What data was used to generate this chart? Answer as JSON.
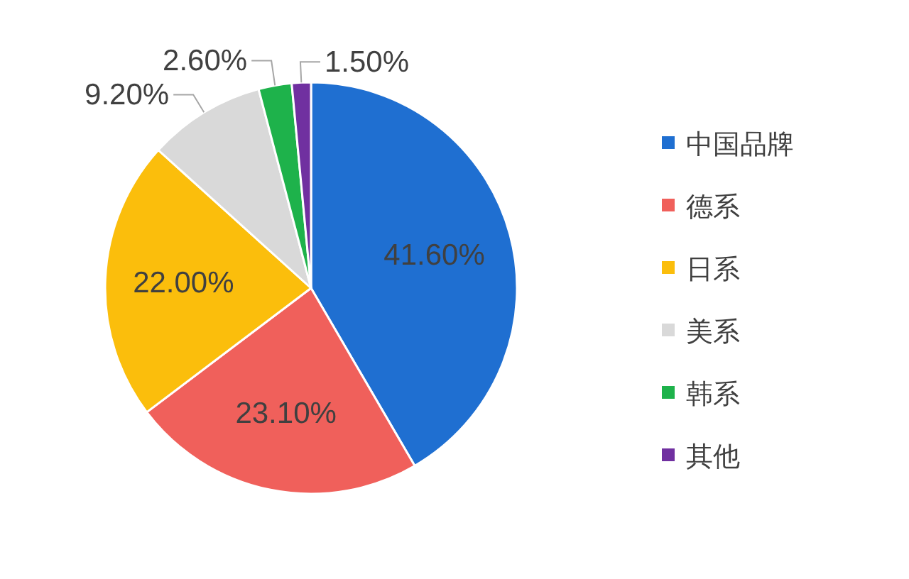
{
  "chart_data": {
    "type": "pie",
    "categories": [
      "中国品牌",
      "德系",
      "日系",
      "美系",
      "韩系",
      "其他"
    ],
    "values": [
      41.6,
      23.1,
      22.0,
      9.2,
      2.6,
      1.5
    ],
    "colors": [
      "#1f6fd1",
      "#f0605b",
      "#fbbe0c",
      "#d9d9d9",
      "#1eb24b",
      "#7030a0"
    ],
    "value_labels": [
      "41.60%",
      "23.10%",
      "22.00%",
      "9.20%",
      "2.60%",
      "1.50%"
    ],
    "legend": "right"
  }
}
